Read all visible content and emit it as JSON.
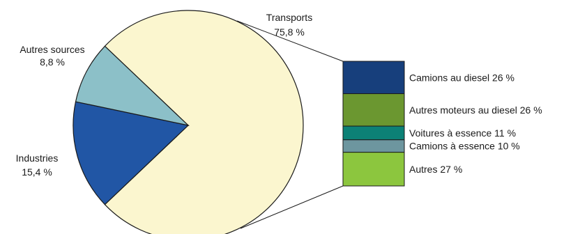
{
  "chart_data": {
    "type": "pie",
    "slices": [
      {
        "label": "Transports",
        "value_text": "75,8 %",
        "value": 75.8,
        "color": "#fbf6cf"
      },
      {
        "label": "Industries",
        "value_text": "15,4 %",
        "value": 15.4,
        "color": "#2156a5"
      },
      {
        "label": "Autres sources",
        "value_text": "8,8 %",
        "value": 8.8,
        "color": "#8cc0c8"
      }
    ],
    "breakdown": {
      "of": "Transports",
      "type": "stacked-bar",
      "segments": [
        {
          "label": "Camions au diesel",
          "value_text": "26 %",
          "value": 26,
          "color": "#173f7c"
        },
        {
          "label": "Autres moteurs au diesel",
          "value_text": "26 %",
          "value": 26,
          "color": "#6b9730"
        },
        {
          "label": "Voitures à essence",
          "value_text": "11 %",
          "value": 11,
          "color": "#0c8176"
        },
        {
          "label": "Camions à essence",
          "value_text": "10 %",
          "value": 10,
          "color": "#6d969f"
        },
        {
          "label": "Autres",
          "value_text": "27 %",
          "value": 27,
          "color": "#8cc63e"
        }
      ]
    }
  }
}
